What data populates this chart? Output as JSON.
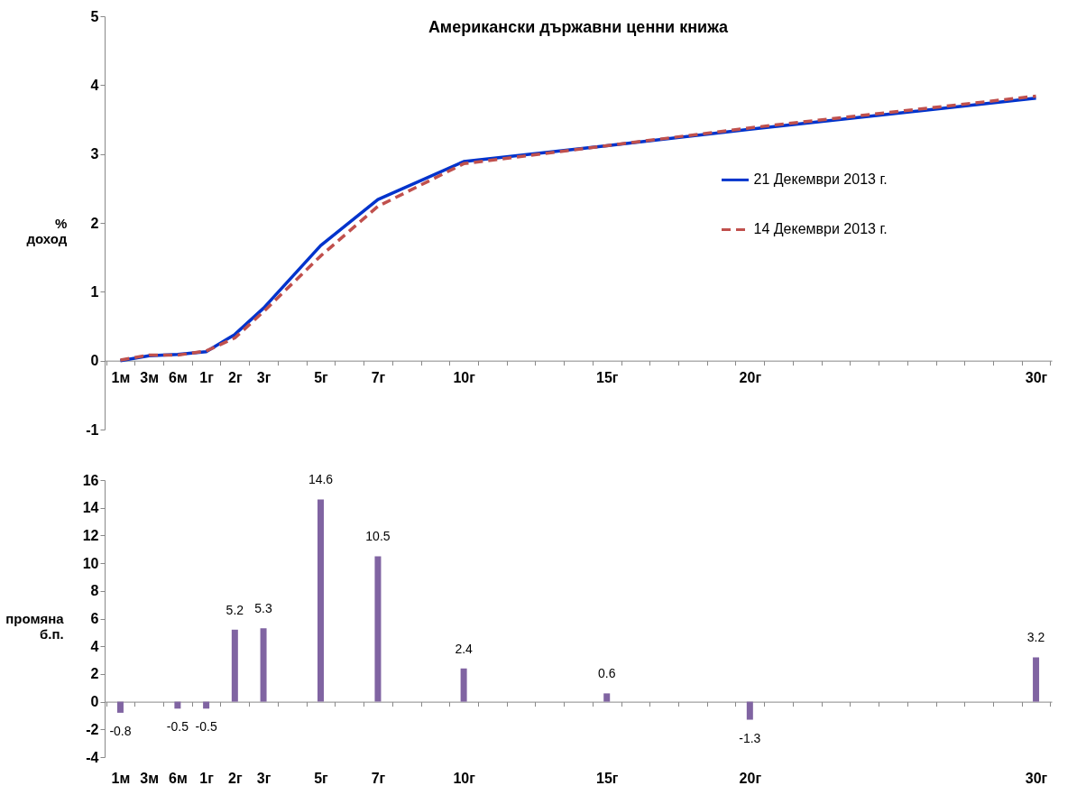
{
  "chart_data": [
    {
      "type": "line",
      "title": "Американски държавни ценни книжа",
      "ylabel": "% доход",
      "categories": [
        "1м",
        "3м",
        "6м",
        "1г",
        "2г",
        "3г",
        null,
        "5г",
        null,
        "7г",
        null,
        null,
        "10г",
        null,
        null,
        null,
        null,
        "15г",
        null,
        null,
        null,
        null,
        "20г",
        null,
        null,
        null,
        null,
        null,
        null,
        null,
        null,
        null,
        "30г"
      ],
      "ylim": [
        -1,
        5
      ],
      "yticks": [
        -1,
        0,
        1,
        2,
        3,
        4,
        5
      ],
      "series": [
        {
          "name": "21 Декември 2013 г.",
          "color": "#0033cc",
          "line_style": "solid",
          "values": [
            0.0,
            0.07,
            0.09,
            0.13,
            0.38,
            0.76,
            null,
            1.67,
            null,
            2.34,
            null,
            null,
            2.89,
            null,
            null,
            null,
            null,
            3.12,
            null,
            null,
            null,
            null,
            3.36,
            null,
            null,
            null,
            null,
            null,
            null,
            null,
            null,
            null,
            3.81
          ]
        },
        {
          "name": "14 Декември 2013 г.",
          "color": "#c0504d",
          "line_style": "dashed",
          "values": [
            0.01,
            0.08,
            0.08,
            0.14,
            0.33,
            0.71,
            null,
            1.52,
            null,
            2.24,
            null,
            null,
            2.86,
            null,
            null,
            null,
            null,
            3.12,
            null,
            null,
            null,
            null,
            3.38,
            null,
            null,
            null,
            null,
            null,
            null,
            null,
            null,
            null,
            3.84
          ]
        }
      ],
      "legend": "right",
      "grid": false,
      "marker": "none"
    },
    {
      "type": "bar",
      "ylabel": "промяна б.п.",
      "categories": [
        "1м",
        "3м",
        "6м",
        "1г",
        "2г",
        "3г",
        null,
        "5г",
        null,
        "7г",
        null,
        null,
        "10г",
        null,
        null,
        null,
        null,
        "15г",
        null,
        null,
        null,
        null,
        "20г",
        null,
        null,
        null,
        null,
        null,
        null,
        null,
        null,
        null,
        "30г"
      ],
      "ylim": [
        -4,
        16
      ],
      "yticks": [
        -4,
        -2,
        0,
        2,
        4,
        6,
        8,
        10,
        12,
        14,
        16
      ],
      "values": [
        -0.8,
        null,
        -0.5,
        -0.5,
        5.2,
        5.3,
        null,
        14.6,
        null,
        10.5,
        null,
        null,
        2.4,
        null,
        null,
        null,
        null,
        0.6,
        null,
        null,
        null,
        null,
        -1.3,
        null,
        null,
        null,
        null,
        null,
        null,
        null,
        null,
        null,
        3.2
      ],
      "color": "#8064a2",
      "data_labels": true
    }
  ]
}
